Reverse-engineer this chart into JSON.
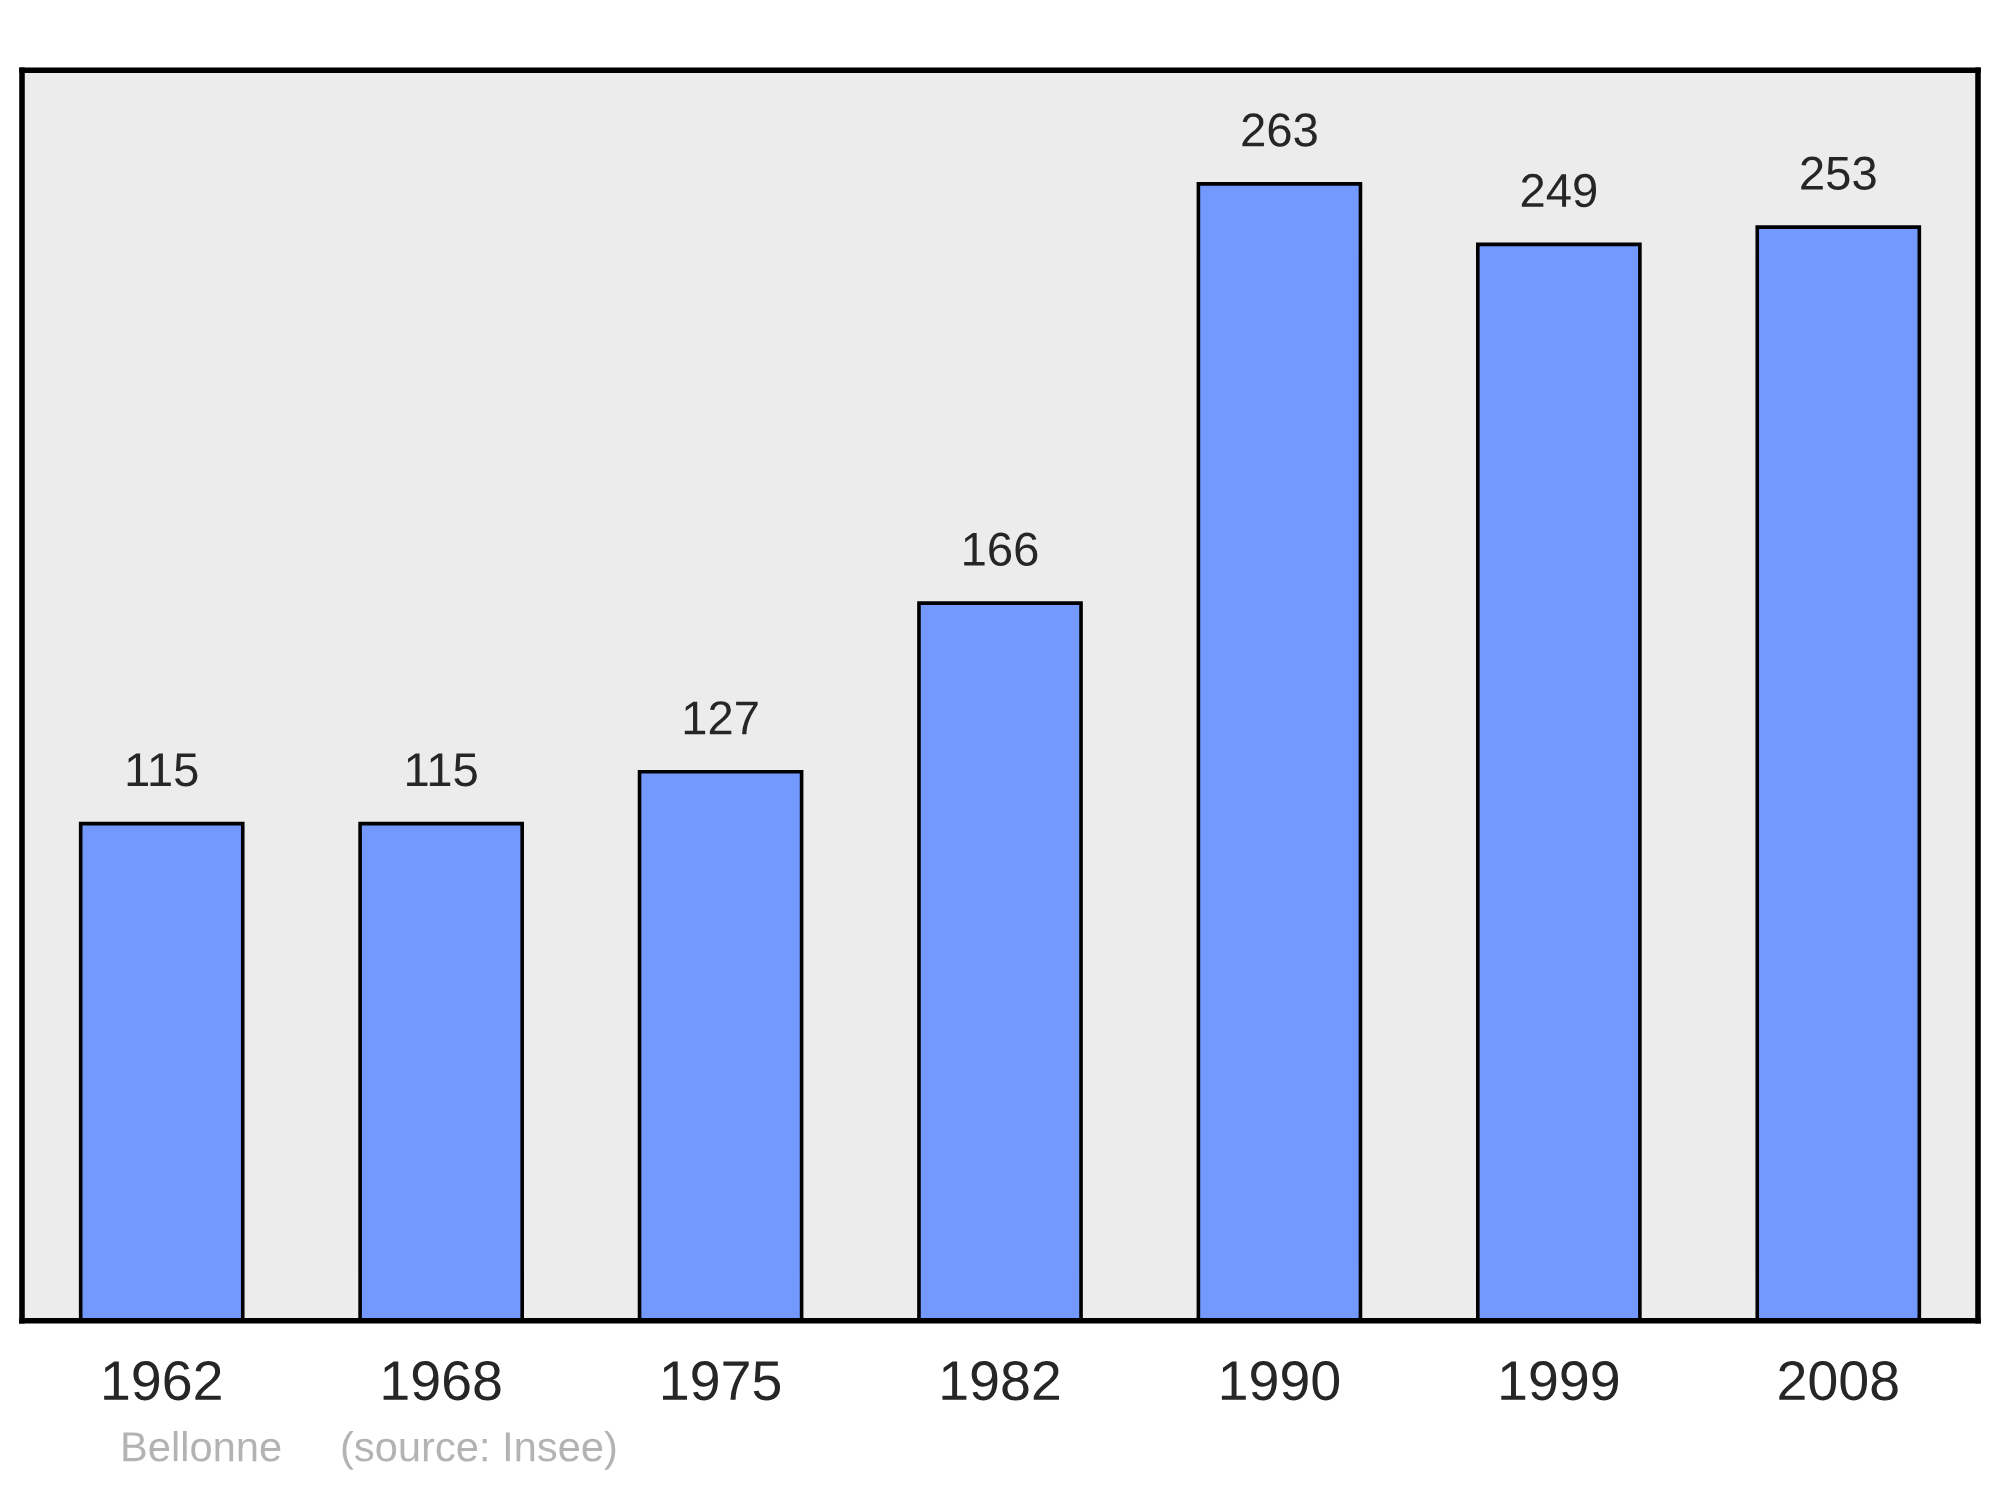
{
  "chart_data": {
    "type": "bar",
    "categories": [
      "1962",
      "1968",
      "1975",
      "1982",
      "1990",
      "1999",
      "2008"
    ],
    "values": [
      115,
      115,
      127,
      166,
      263,
      249,
      253
    ],
    "color": "#7399ff",
    "data_labels": true,
    "grid": false,
    "legend": false,
    "tick_labels": "x",
    "annotations": [
      "Bellonne",
      "(source: Insee)"
    ]
  }
}
